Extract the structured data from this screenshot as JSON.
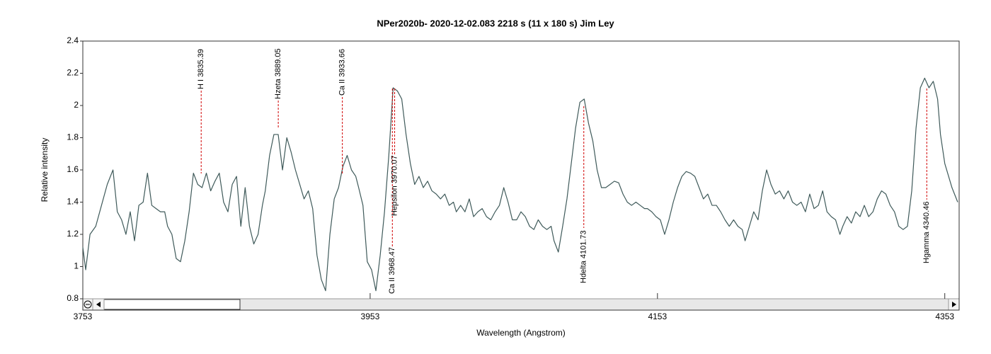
{
  "chart_data": {
    "type": "line",
    "title": "NPer2020b-   2020-12-02.083   2218 s (11 x 180 s)   Jim Ley",
    "x_label": "Wavelength (Angstrom)",
    "y_label": "Relative intensity",
    "xlim": [
      3753,
      4363
    ],
    "ylim": [
      0.8,
      2.4
    ],
    "xticks": [
      3753,
      3953,
      4153,
      4353
    ],
    "yticks": [
      0.8,
      1,
      1.2,
      1.4,
      1.6,
      1.8,
      2,
      2.2,
      2.4
    ],
    "grid": false,
    "x": [
      3753,
      3755,
      3758,
      3762,
      3766,
      3770,
      3774,
      3777,
      3780,
      3783,
      3786,
      3789,
      3792,
      3795,
      3798,
      3801,
      3804,
      3807,
      3810,
      3812,
      3815,
      3818,
      3821,
      3824,
      3827,
      3830,
      3833,
      3836,
      3839,
      3842,
      3845,
      3848,
      3851,
      3854,
      3857,
      3860,
      3863,
      3866,
      3869,
      3872,
      3875,
      3878,
      3880,
      3883,
      3886,
      3889,
      3892,
      3895,
      3898,
      3901,
      3904,
      3907,
      3910,
      3913,
      3916,
      3919,
      3922,
      3925,
      3928,
      3931,
      3934,
      3937,
      3940,
      3943,
      3945,
      3948,
      3951,
      3954,
      3957,
      3960,
      3963,
      3966,
      3969,
      3972,
      3975,
      3978,
      3981,
      3984,
      3987,
      3990,
      3993,
      3996,
      3999,
      4002,
      4005,
      4008,
      4011,
      4013,
      4016,
      4019,
      4022,
      4025,
      4028,
      4031,
      4034,
      4037,
      4040,
      4043,
      4046,
      4049,
      4052,
      4055,
      4058,
      4061,
      4064,
      4067,
      4070,
      4073,
      4076,
      4079,
      4081,
      4084,
      4087,
      4090,
      4093,
      4096,
      4099,
      4102,
      4105,
      4108,
      4111,
      4114,
      4117,
      4120,
      4123,
      4126,
      4129,
      4132,
      4135,
      4138,
      4141,
      4144,
      4146,
      4149,
      4152,
      4155,
      4158,
      4161,
      4164,
      4167,
      4170,
      4173,
      4176,
      4179,
      4182,
      4185,
      4188,
      4191,
      4194,
      4197,
      4200,
      4203,
      4206,
      4209,
      4212,
      4214,
      4217,
      4220,
      4223,
      4226,
      4229,
      4232,
      4235,
      4238,
      4241,
      4244,
      4247,
      4250,
      4253,
      4256,
      4259,
      4262,
      4265,
      4268,
      4271,
      4274,
      4277,
      4280,
      4282,
      4285,
      4288,
      4291,
      4294,
      4297,
      4300,
      4303,
      4306,
      4309,
      4312,
      4315,
      4318,
      4321,
      4324,
      4327,
      4330,
      4333,
      4336,
      4339,
      4342,
      4345,
      4348,
      4350,
      4353,
      4358,
      4362
    ],
    "series": [
      {
        "name": "NPer2020b",
        "color": "#3f5a5a",
        "values": [
          1.12,
          0.98,
          1.2,
          1.25,
          1.38,
          1.51,
          1.6,
          1.34,
          1.29,
          1.2,
          1.34,
          1.16,
          1.38,
          1.4,
          1.58,
          1.38,
          1.36,
          1.34,
          1.34,
          1.25,
          1.2,
          1.05,
          1.03,
          1.16,
          1.34,
          1.58,
          1.51,
          1.49,
          1.58,
          1.47,
          1.53,
          1.58,
          1.4,
          1.34,
          1.51,
          1.56,
          1.25,
          1.49,
          1.25,
          1.14,
          1.2,
          1.38,
          1.47,
          1.69,
          1.82,
          1.82,
          1.6,
          1.8,
          1.71,
          1.6,
          1.51,
          1.42,
          1.47,
          1.36,
          1.07,
          0.92,
          0.85,
          1.2,
          1.42,
          1.49,
          1.62,
          1.69,
          1.6,
          1.56,
          1.49,
          1.38,
          1.03,
          0.98,
          0.85,
          1.07,
          1.34,
          1.69,
          2.11,
          2.09,
          2.04,
          1.82,
          1.64,
          1.51,
          1.56,
          1.49,
          1.53,
          1.47,
          1.45,
          1.42,
          1.45,
          1.38,
          1.4,
          1.34,
          1.38,
          1.34,
          1.42,
          1.31,
          1.34,
          1.36,
          1.31,
          1.29,
          1.34,
          1.38,
          1.49,
          1.4,
          1.29,
          1.29,
          1.34,
          1.31,
          1.25,
          1.23,
          1.29,
          1.25,
          1.23,
          1.25,
          1.16,
          1.09,
          1.25,
          1.42,
          1.64,
          1.86,
          2.02,
          2.04,
          1.89,
          1.78,
          1.6,
          1.49,
          1.49,
          1.51,
          1.53,
          1.52,
          1.45,
          1.4,
          1.38,
          1.4,
          1.38,
          1.36,
          1.36,
          1.34,
          1.31,
          1.29,
          1.2,
          1.29,
          1.4,
          1.49,
          1.56,
          1.59,
          1.58,
          1.56,
          1.49,
          1.42,
          1.45,
          1.38,
          1.38,
          1.34,
          1.29,
          1.25,
          1.29,
          1.25,
          1.23,
          1.16,
          1.25,
          1.34,
          1.29,
          1.47,
          1.6,
          1.51,
          1.45,
          1.47,
          1.42,
          1.47,
          1.4,
          1.38,
          1.4,
          1.34,
          1.45,
          1.36,
          1.38,
          1.47,
          1.34,
          1.31,
          1.29,
          1.2,
          1.25,
          1.31,
          1.27,
          1.34,
          1.31,
          1.38,
          1.31,
          1.34,
          1.42,
          1.47,
          1.45,
          1.38,
          1.34,
          1.25,
          1.23,
          1.25,
          1.47,
          1.86,
          2.11,
          2.17,
          2.11,
          2.15,
          2.04,
          1.82,
          1.64,
          1.49,
          1.4
        ]
      }
    ],
    "annotations": [
      {
        "text": "H I 3835.39",
        "x": 3835.39
      },
      {
        "text": "Hzeta 3889.05",
        "x": 3889.05
      },
      {
        "text": "Ca II 3933.66",
        "x": 3933.66
      },
      {
        "text": "Ca II 3968.47",
        "x": 3968.47
      },
      {
        "text": "Hepsilon 3970.07",
        "x": 3970.07
      },
      {
        "text": "Hdelta 4101.73",
        "x": 4101.73
      },
      {
        "text": "Hgamma 4340.46",
        "x": 4340.46
      }
    ]
  }
}
